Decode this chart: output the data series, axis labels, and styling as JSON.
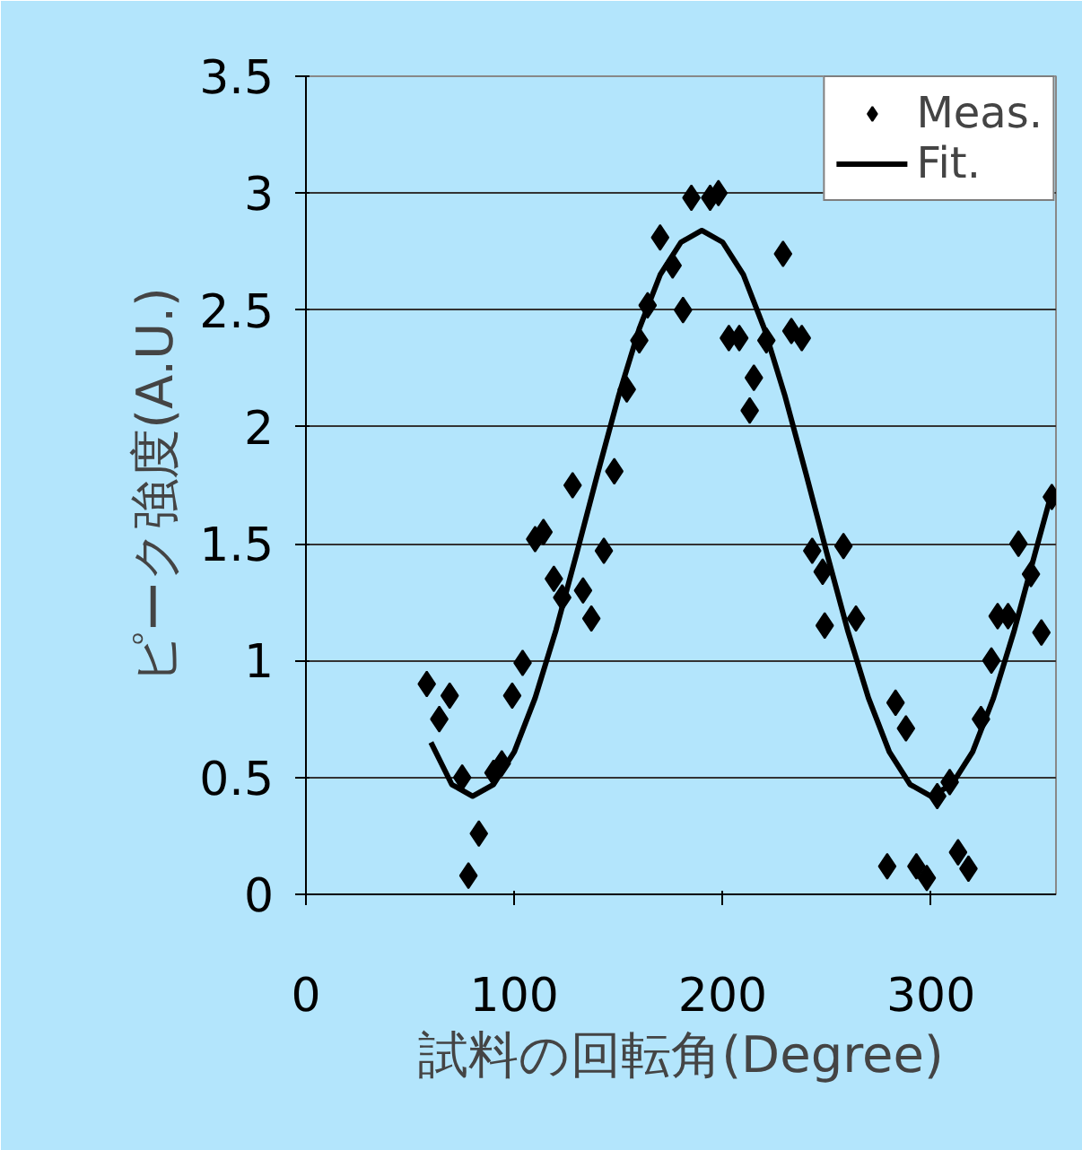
{
  "chart_data": {
    "type": "scatter",
    "xlabel": "試料の回転角(Degree)",
    "ylabel": "ピーク強度(A.U.)",
    "xlim": [
      0,
      360
    ],
    "ylim": [
      0,
      3.5
    ],
    "xticks": [
      0,
      100,
      200,
      300
    ],
    "yticks": [
      0,
      0.5,
      1,
      1.5,
      2,
      2.5,
      3,
      3.5
    ],
    "grid": "y",
    "legend": "top right",
    "series": [
      {
        "name": "Meas.",
        "marker": "diamond",
        "color": "#000000",
        "x": [
          58,
          64,
          69,
          75,
          78,
          83,
          90,
          94,
          99,
          104,
          110,
          114,
          119,
          123,
          128,
          133,
          137,
          143,
          148,
          154,
          160,
          164,
          170,
          176,
          181,
          185,
          194,
          198,
          203,
          208,
          213,
          215,
          221,
          229,
          233,
          238,
          243,
          248,
          249,
          258,
          264,
          279,
          283,
          288,
          293,
          298,
          303,
          309,
          313,
          318,
          324,
          329,
          332,
          337,
          342,
          348,
          353,
          358
        ],
        "values": [
          0.9,
          0.75,
          0.85,
          0.5,
          0.08,
          0.26,
          0.52,
          0.56,
          0.85,
          0.99,
          1.52,
          1.55,
          1.35,
          1.27,
          1.75,
          1.3,
          1.18,
          1.47,
          1.81,
          2.16,
          2.37,
          2.52,
          2.81,
          2.69,
          2.5,
          2.98,
          2.98,
          3.0,
          2.38,
          2.38,
          2.07,
          2.21,
          2.37,
          2.74,
          2.41,
          2.38,
          1.47,
          1.38,
          1.15,
          1.49,
          1.18,
          0.12,
          0.82,
          0.71,
          0.12,
          0.07,
          0.42,
          0.48,
          0.18,
          0.11,
          0.75,
          1.0,
          1.19,
          1.19,
          1.5,
          1.37,
          1.12,
          1.7
        ]
      },
      {
        "name": "Fit.",
        "type": "line",
        "marker": "none",
        "line_style": "solid",
        "color": "#000000",
        "x": [
          60,
          70,
          80,
          90,
          100,
          110,
          120,
          130,
          140,
          150,
          160,
          170,
          180,
          190,
          200,
          210,
          220,
          230,
          240,
          250,
          260,
          270,
          280,
          290,
          300,
          310,
          320,
          330,
          340,
          350,
          358
        ],
        "values": [
          0.65,
          0.47,
          0.42,
          0.47,
          0.61,
          0.84,
          1.13,
          1.46,
          1.8,
          2.13,
          2.42,
          2.65,
          2.79,
          2.84,
          2.79,
          2.65,
          2.42,
          2.13,
          1.8,
          1.46,
          1.13,
          0.84,
          0.61,
          0.47,
          0.42,
          0.47,
          0.61,
          0.84,
          1.13,
          1.46,
          1.72
        ]
      }
    ]
  }
}
